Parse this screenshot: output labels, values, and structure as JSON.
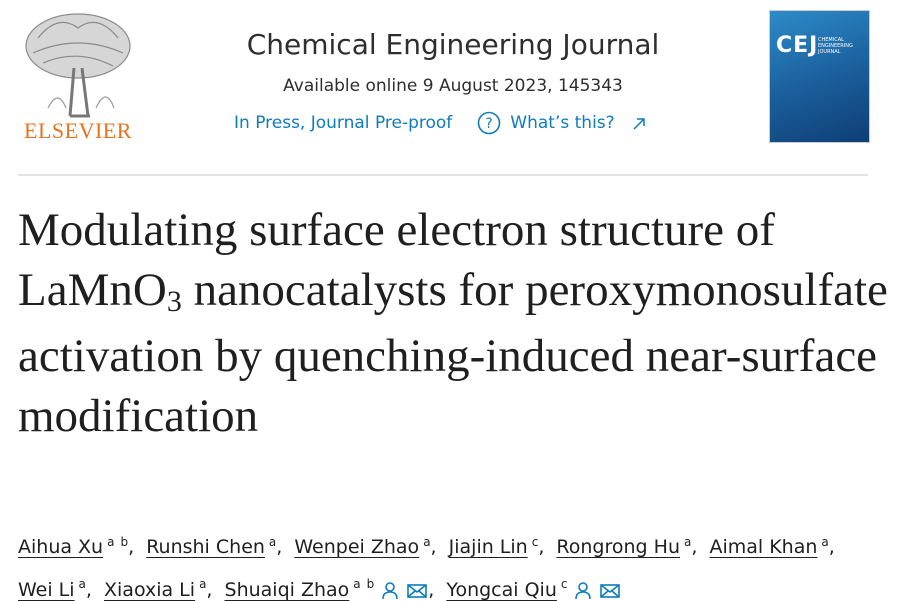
{
  "header": {
    "publisher": "ELSEVIER",
    "journal": "Chemical Engineering Journal",
    "available": "Available online 9 August 2023, 145343",
    "status": "In Press, Journal Pre-proof",
    "help": "What’s this?",
    "cover": {
      "abbr": "CEJ",
      "name": "CHEMICAL ENGINEERING JOURNAL"
    }
  },
  "article": {
    "title": [
      "Modulating surface electron structure of LaMnO",
      "3",
      " nanocatalysts for peroxymonosulfate activation by quenching-induced near-surface modification"
    ],
    "authors": [
      {
        "name": "Aihua Xu",
        "affiliations": [
          "a",
          "b"
        ]
      },
      {
        "name": "Runshi Chen",
        "affiliations": [
          "a"
        ]
      },
      {
        "name": "Wenpei Zhao",
        "affiliations": [
          "a"
        ]
      },
      {
        "name": "Jiajin Lin",
        "affiliations": [
          "c"
        ]
      },
      {
        "name": "Rongrong Hu",
        "affiliations": [
          "a"
        ]
      },
      {
        "name": "Aimal Khan",
        "affiliations": [
          "a"
        ]
      },
      {
        "name": "Wei Li",
        "affiliations": [
          "a"
        ]
      },
      {
        "name": "Xiaoxia Li",
        "affiliations": [
          "a"
        ]
      },
      {
        "name": "Shuaiqi Zhao",
        "affiliations": [
          "a",
          "b"
        ],
        "corresponding": true
      },
      {
        "name": "Yongcai Qiu",
        "affiliations": [
          "c"
        ],
        "corresponding": true
      }
    ]
  }
}
